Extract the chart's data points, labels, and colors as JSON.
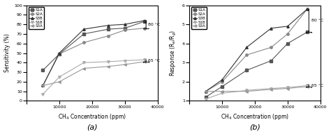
{
  "x": [
    5000,
    10000,
    17500,
    25000,
    30000,
    36000
  ],
  "a_S1A": [
    32,
    49,
    70,
    75,
    76,
    83
  ],
  "a_S2A": [
    16,
    49,
    61,
    68,
    74,
    76
  ],
  "a_S3B": [
    16,
    50,
    75,
    79,
    80,
    84
  ],
  "a_S1B": [
    7,
    25,
    40,
    41,
    42,
    43
  ],
  "a_S3A": [
    16,
    20,
    34,
    36,
    38,
    41
  ],
  "b_S1A": [
    1.2,
    1.75,
    2.6,
    3.1,
    4.0,
    4.6
  ],
  "b_S2A": [
    1.5,
    2.0,
    3.4,
    3.8,
    4.5,
    5.8
  ],
  "b_S3B": [
    1.5,
    2.1,
    3.8,
    4.8,
    4.9,
    5.8
  ],
  "b_S1B": [
    1.1,
    1.4,
    1.55,
    1.65,
    1.7,
    1.8
  ],
  "b_S3A": [
    1.5,
    1.5,
    1.5,
    1.6,
    1.65,
    1.75
  ],
  "a_ylim": [
    0,
    100
  ],
  "a_yticks": [
    0,
    10,
    20,
    30,
    40,
    50,
    60,
    70,
    80,
    90,
    100
  ],
  "b_ylim": [
    1,
    6
  ],
  "b_yticks": [
    1,
    2,
    3,
    4,
    5,
    6
  ],
  "xlim": [
    0,
    40000
  ],
  "xticks": [
    0,
    10000,
    20000,
    30000,
    40000
  ],
  "xlabel": "CH$_4$ Concentration (ppm)",
  "a_ylabel": "Sensitivity (%)",
  "b_ylabel": "Response (R$_a$/R$_g$)",
  "label_a": "(a)",
  "label_b": "(b)",
  "legend_labels": [
    "S1A",
    "S2A",
    "S3B",
    "S1B",
    "S3A"
  ],
  "color_S1A": "#555555",
  "color_S2A": "#888888",
  "color_S3B": "#333333",
  "color_S1B": "#aaaaaa",
  "color_S3A": "#999999",
  "marker_S1A": "s",
  "marker_S2A": "o",
  "marker_S3B": "^",
  "marker_S1B": "v",
  "marker_S3A": "<",
  "ann_80": "80 °C",
  "ann_65": "65 °C"
}
